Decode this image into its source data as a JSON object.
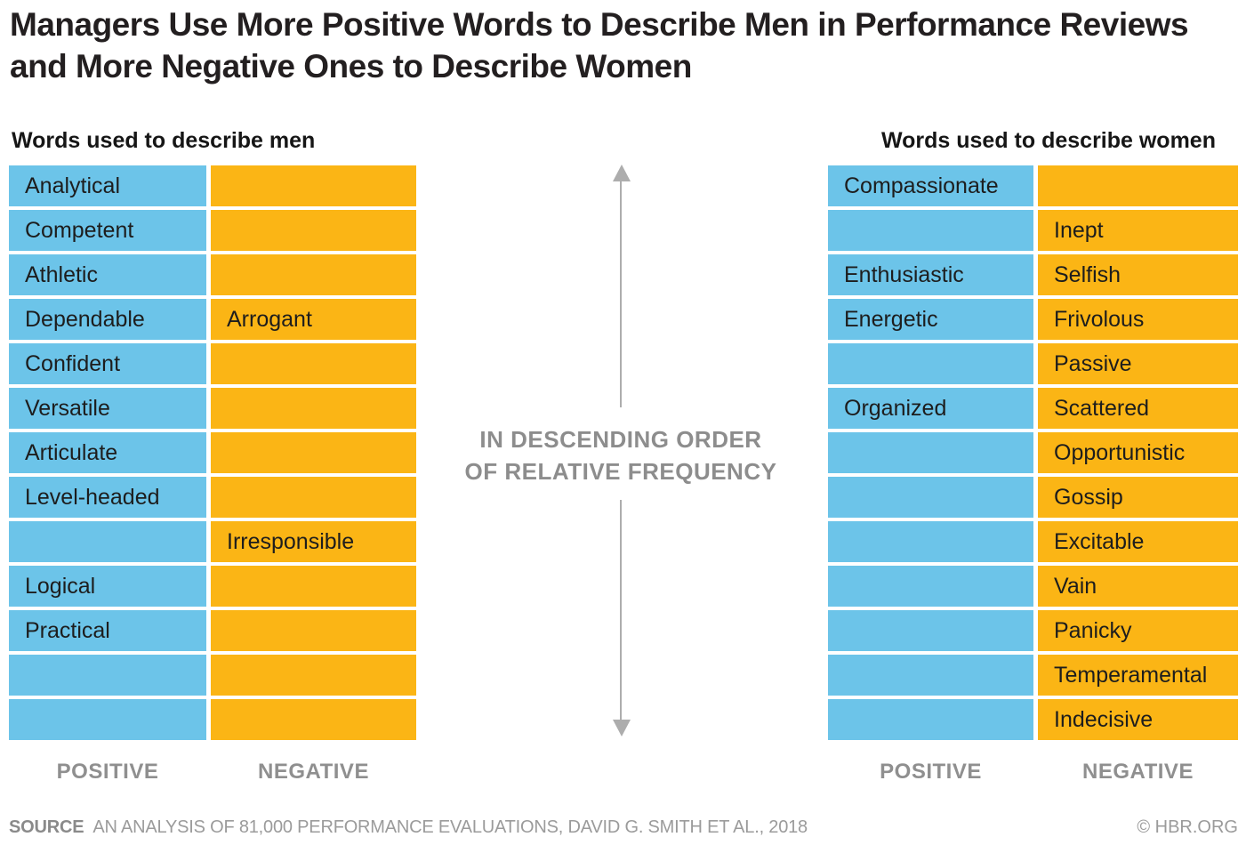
{
  "title": "Managers Use More Positive Words to Describe Men in Performance Reviews and More Negative Ones to Describe Women",
  "men": {
    "header": "Words used to describe men",
    "positive_label": "POSITIVE",
    "negative_label": "NEGATIVE"
  },
  "women": {
    "header": "Words used to describe women",
    "positive_label": "POSITIVE",
    "negative_label": "NEGATIVE"
  },
  "center": {
    "line1": "IN DESCENDING ORDER",
    "line2": "OF RELATIVE FREQUENCY"
  },
  "footer": {
    "source_label": "SOURCE",
    "source_text": "AN ANALYSIS OF 81,000 PERFORMANCE EVALUATIONS, DAVID G. SMITH ET AL., 2018",
    "credit": "© HBR.ORG"
  },
  "colors": {
    "positive": "#6CC4E9",
    "negative": "#FBB515",
    "arrow": "#ADADAD",
    "muted_text": "#8D8D8D",
    "title_text": "#231F20"
  },
  "chart_data": {
    "type": "table",
    "title": "Managers Use More Positive Words to Describe Men in Performance Reviews and More Negative Ones to Describe Women",
    "annotation": "IN DESCENDING ORDER OF RELATIVE FREQUENCY",
    "order": "rows sorted top to bottom by descending relative frequency",
    "tables": [
      {
        "name": "Words used to describe men",
        "columns": [
          "POSITIVE",
          "NEGATIVE"
        ],
        "rows": [
          [
            "Analytical",
            null
          ],
          [
            "Competent",
            null
          ],
          [
            "Athletic",
            null
          ],
          [
            "Dependable",
            "Arrogant"
          ],
          [
            "Confident",
            null
          ],
          [
            "Versatile",
            null
          ],
          [
            "Articulate",
            null
          ],
          [
            "Level-headed",
            null
          ],
          [
            null,
            "Irresponsible"
          ],
          [
            "Logical",
            null
          ],
          [
            "Practical",
            null
          ],
          [
            null,
            null
          ],
          [
            null,
            null
          ]
        ]
      },
      {
        "name": "Words used to describe women",
        "columns": [
          "POSITIVE",
          "NEGATIVE"
        ],
        "rows": [
          [
            "Compassionate",
            null
          ],
          [
            null,
            "Inept"
          ],
          [
            "Enthusiastic",
            "Selfish"
          ],
          [
            "Energetic",
            "Frivolous"
          ],
          [
            null,
            "Passive"
          ],
          [
            "Organized",
            "Scattered"
          ],
          [
            null,
            "Opportunistic"
          ],
          [
            null,
            "Gossip"
          ],
          [
            null,
            "Excitable"
          ],
          [
            null,
            "Vain"
          ],
          [
            null,
            "Panicky"
          ],
          [
            null,
            "Temperamental"
          ],
          [
            null,
            "Indecisive"
          ]
        ]
      }
    ],
    "source": "AN ANALYSIS OF 81,000 PERFORMANCE EVALUATIONS, DAVID G. SMITH ET AL., 2018",
    "credit": "© HBR.ORG"
  }
}
